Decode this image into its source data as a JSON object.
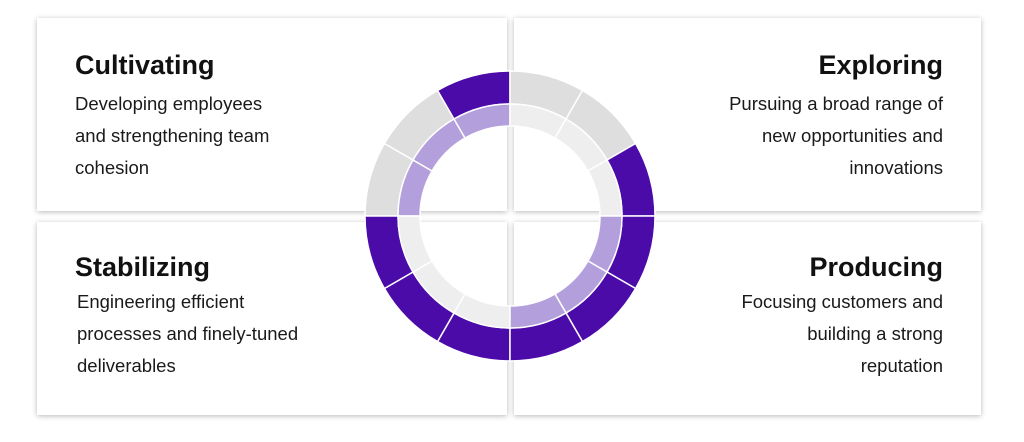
{
  "quadrants": [
    {
      "title": "Cultivating",
      "description": "Developing employees\nand strengthening team\ncohesion"
    },
    {
      "title": "Exploring",
      "description": "Pursuing a broad range of\nnew opportunities and\ninnovations"
    },
    {
      "title": "Stabilizing",
      "description": "Engineering efficient\nprocesses and finely-tuned\ndeliverables"
    },
    {
      "title": "Producing",
      "description": "Focusing customers and\nbuilding a strong\nreputation"
    }
  ],
  "colors": {
    "accent": "#4b0ba8",
    "accent_light": "#b39fdb",
    "gray_outer": "#dedede",
    "gray_inner": "#eeeeee"
  },
  "ring": {
    "outer_fill": [
      [
        "gray",
        "gray",
        "accent"
      ],
      [
        "gray",
        "gray",
        "accent"
      ],
      [
        "accent",
        "accent",
        "accent"
      ],
      [
        "accent",
        "accent",
        "accent"
      ]
    ],
    "inner_fill": [
      [
        "light",
        "light",
        "light"
      ],
      [
        "gray",
        "gray",
        "gray"
      ],
      [
        "gray",
        "gray",
        "gray"
      ],
      [
        "light",
        "light",
        "light"
      ]
    ]
  }
}
